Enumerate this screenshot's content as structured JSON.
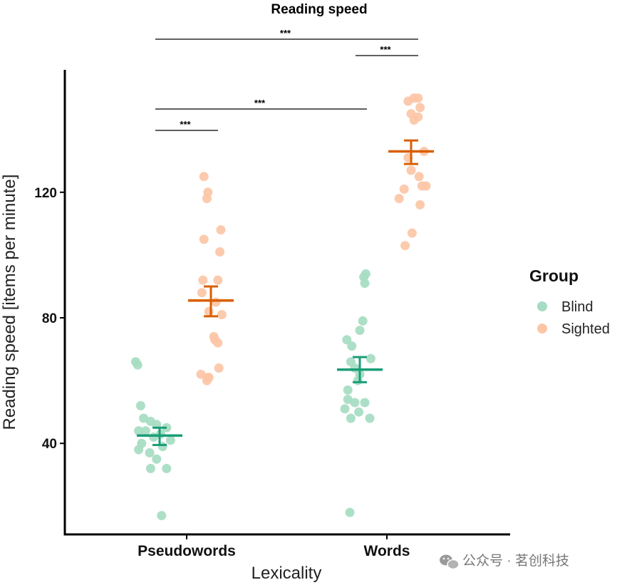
{
  "chart_data": {
    "type": "scatter",
    "title": "Reading speed",
    "xlabel": "Lexicality",
    "ylabel": "Reading speed [items per minute]",
    "categories": [
      "Pseudowords",
      "Words"
    ],
    "ylim": [
      11,
      159
    ],
    "yticks": [
      40,
      80,
      120
    ],
    "legend_title": "Group",
    "legend_position": "right",
    "series": [
      {
        "name": "Blind",
        "color": "#a6dcc2",
        "mean_color": "#1b9e77",
        "groups": [
          {
            "category": "Pseudowords",
            "mean": 42.5,
            "ci_low": 39.5,
            "ci_high": 45,
            "points": [
              66,
              65,
              52,
              48,
              47,
              46,
              45,
              44,
              44,
              43,
              42,
              41,
              40,
              39,
              38,
              37,
              35,
              32,
              32,
              17
            ],
            "jitter": [
              -0.24,
              -0.22,
              -0.19,
              -0.16,
              -0.09,
              -0.03,
              0.07,
              -0.21,
              -0.14,
              0.01,
              -0.06,
              0.11,
              -0.18,
              0.03,
              -0.21,
              -0.1,
              -0.03,
              -0.09,
              0.07,
              0.02
            ]
          },
          {
            "category": "Words",
            "mean": 63.5,
            "ci_low": 59.5,
            "ci_high": 67.5,
            "points": [
              94,
              93,
              91,
              79,
              76,
              73,
              71,
              67,
              66,
              64,
              62,
              60,
              57,
              54,
              53,
              53,
              51,
              50,
              48,
              48,
              18
            ],
            "jitter": [
              0.06,
              0.04,
              0.05,
              0.03,
              0.0,
              -0.13,
              -0.08,
              0.11,
              -0.09,
              -0.05,
              0.0,
              -0.02,
              -0.12,
              -0.12,
              -0.05,
              0.05,
              -0.15,
              -0.01,
              -0.09,
              0.1,
              -0.1
            ]
          }
        ]
      },
      {
        "name": "Sighted",
        "color": "#fcc6a6",
        "mean_color": "#d95f02",
        "groups": [
          {
            "category": "Pseudowords",
            "mean": 85.5,
            "ci_low": 80.5,
            "ci_high": 90,
            "points": [
              125,
              120,
              118,
              108,
              105,
              101,
              92,
              92,
              88,
              85,
              82,
              81,
              74,
              73,
              72,
              64,
              62,
              61,
              61,
              60
            ],
            "jitter": [
              -0.07,
              -0.03,
              -0.04,
              0.1,
              -0.07,
              0.09,
              -0.08,
              0.07,
              -0.09,
              0.05,
              -0.02,
              0.11,
              0.03,
              0.04,
              0.07,
              0.08,
              -0.1,
              -0.02,
              -0.03,
              -0.04
            ]
          },
          {
            "category": "Words",
            "mean": 133,
            "ci_low": 129,
            "ci_high": 136.5,
            "points": [
              150,
              150,
              149,
              147,
              145,
              144,
              143,
              133,
              131,
              127,
              125,
              122,
              122,
              121,
              118,
              116,
              107,
              103
            ],
            "jitter": [
              0.03,
              0.07,
              -0.03,
              0.09,
              0.0,
              0.07,
              0.03,
              0.13,
              -0.03,
              0.0,
              0.08,
              0.11,
              0.15,
              -0.07,
              -0.12,
              0.09,
              0.01,
              -0.06
            ]
          }
        ]
      }
    ],
    "annotations": [
      {
        "label": "***",
        "x1": "Pseudowords:Blind",
        "x2": "Words:Sighted",
        "level": "top"
      },
      {
        "label": "***",
        "x1": "Words:Blind",
        "x2": "Words:Sighted",
        "level": "upper"
      },
      {
        "label": "***",
        "x1": "Pseudowords:Blind",
        "x2": "Words:Blind",
        "level": "middle"
      },
      {
        "label": "***",
        "x1": "Pseudowords:Blind",
        "x2": "Pseudowords:Sighted",
        "level": "lower"
      }
    ]
  },
  "watermark": "公众号 · 茗创科技"
}
